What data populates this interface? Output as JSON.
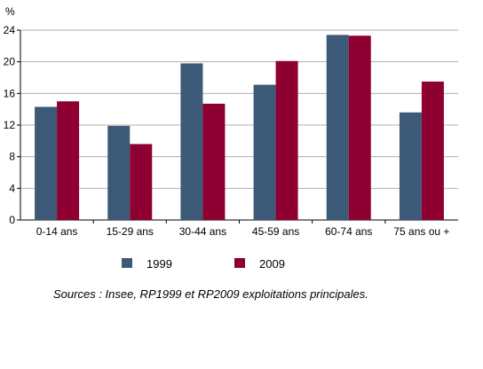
{
  "chart_data": {
    "type": "bar",
    "ylabel": "%",
    "ylim": [
      0,
      24
    ],
    "yticks": [
      0,
      4,
      8,
      12,
      16,
      20,
      24
    ],
    "grid": true,
    "legend_position": "bottom",
    "categories": [
      "0-14 ans",
      "15-29 ans",
      "30-44 ans",
      "45-59 ans",
      "60-74 ans",
      "75 ans ou +"
    ],
    "series": [
      {
        "name": "1999",
        "color": "#3c5a78",
        "values": [
          14.3,
          11.9,
          19.8,
          17.1,
          23.4,
          13.6
        ]
      },
      {
        "name": "2009",
        "color": "#8e0032",
        "values": [
          15.0,
          9.6,
          14.7,
          20.1,
          23.3,
          17.5
        ]
      }
    ]
  },
  "source_text": "Sources : Insee, RP1999 et RP2009 exploitations principales."
}
